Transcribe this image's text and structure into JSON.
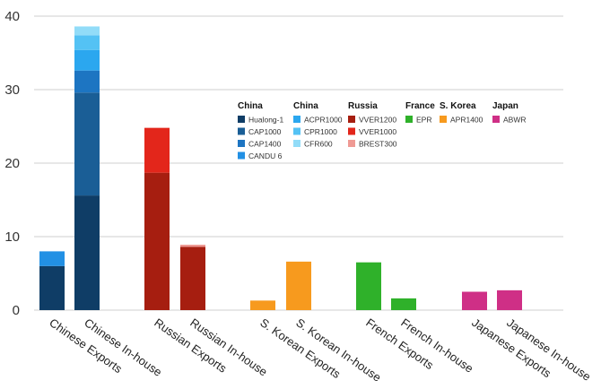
{
  "chart_data": {
    "type": "bar",
    "stacked": true,
    "grid": true,
    "ylim": [
      0,
      40
    ],
    "yticks": [
      0,
      10,
      20,
      30,
      40
    ],
    "categories": [
      "Chinese Exports",
      "Chinese In-house",
      "Russian Exports",
      "Russian In-house",
      "S. Korean Exports",
      "S. Korean In-house",
      "French Exports",
      "French In-house",
      "Japanese Exports",
      "Japanese In-house"
    ],
    "legend_groups": [
      {
        "title": "China",
        "items": [
          "Hualong-1",
          "CAP1000",
          "CAP1400",
          "CANDU 6"
        ]
      },
      {
        "title": "China",
        "items": [
          "ACPR1000",
          "CPR1000",
          "CFR600"
        ]
      },
      {
        "title": "Russia",
        "items": [
          "VVER1200",
          "VVER1000",
          "BREST300"
        ]
      },
      {
        "title": "France",
        "items": [
          "EPR"
        ]
      },
      {
        "title": "S. Korea",
        "items": [
          "APR1400"
        ]
      },
      {
        "title": "Japan",
        "items": [
          "ABWR"
        ]
      }
    ],
    "series": [
      {
        "name": "Hualong-1",
        "color": "#0f3d66",
        "values": [
          6,
          15.6,
          0,
          0,
          0,
          0,
          0,
          0,
          0,
          0
        ]
      },
      {
        "name": "CAP1000",
        "color": "#1a5e96",
        "values": [
          0,
          14,
          0,
          0,
          0,
          0,
          0,
          0,
          0,
          0
        ]
      },
      {
        "name": "CAP1400",
        "color": "#1d75c2",
        "values": [
          0,
          3,
          0,
          0,
          0,
          0,
          0,
          0,
          0,
          0
        ]
      },
      {
        "name": "CANDU 6",
        "color": "#2290e4",
        "values": [
          2,
          0,
          0,
          0,
          0,
          0,
          0,
          0,
          0,
          0
        ]
      },
      {
        "name": "ACPR1000",
        "color": "#2ba7ef",
        "values": [
          0,
          2.8,
          0,
          0,
          0,
          0,
          0,
          0,
          0,
          0
        ]
      },
      {
        "name": "CPR1000",
        "color": "#54c2f4",
        "values": [
          0,
          2,
          0,
          0,
          0,
          0,
          0,
          0,
          0,
          0
        ]
      },
      {
        "name": "CFR600",
        "color": "#92dcf8",
        "values": [
          0,
          1.2,
          0,
          0,
          0,
          0,
          0,
          0,
          0,
          0
        ]
      },
      {
        "name": "VVER1200",
        "color": "#a61e10",
        "values": [
          0,
          0,
          18.7,
          8.6,
          0,
          0,
          0,
          0,
          0,
          0
        ]
      },
      {
        "name": "VVER1000",
        "color": "#e3261b",
        "values": [
          0,
          0,
          6.1,
          0,
          0,
          0,
          0,
          0,
          0,
          0
        ]
      },
      {
        "name": "BREST300",
        "color": "#ef9a94",
        "values": [
          0,
          0,
          0,
          0.3,
          0,
          0,
          0,
          0,
          0,
          0
        ]
      },
      {
        "name": "EPR",
        "color": "#2fb12a",
        "values": [
          0,
          0,
          0,
          0,
          0,
          0,
          6.5,
          1.6,
          0,
          0
        ]
      },
      {
        "name": "APR1400",
        "color": "#f79a1e",
        "values": [
          0,
          0,
          0,
          0,
          1.3,
          6.6,
          0,
          0,
          0,
          0
        ]
      },
      {
        "name": "ABWR",
        "color": "#cf2f86",
        "values": [
          0,
          0,
          0,
          0,
          0,
          0,
          0,
          0,
          2.5,
          2.7
        ]
      }
    ]
  }
}
